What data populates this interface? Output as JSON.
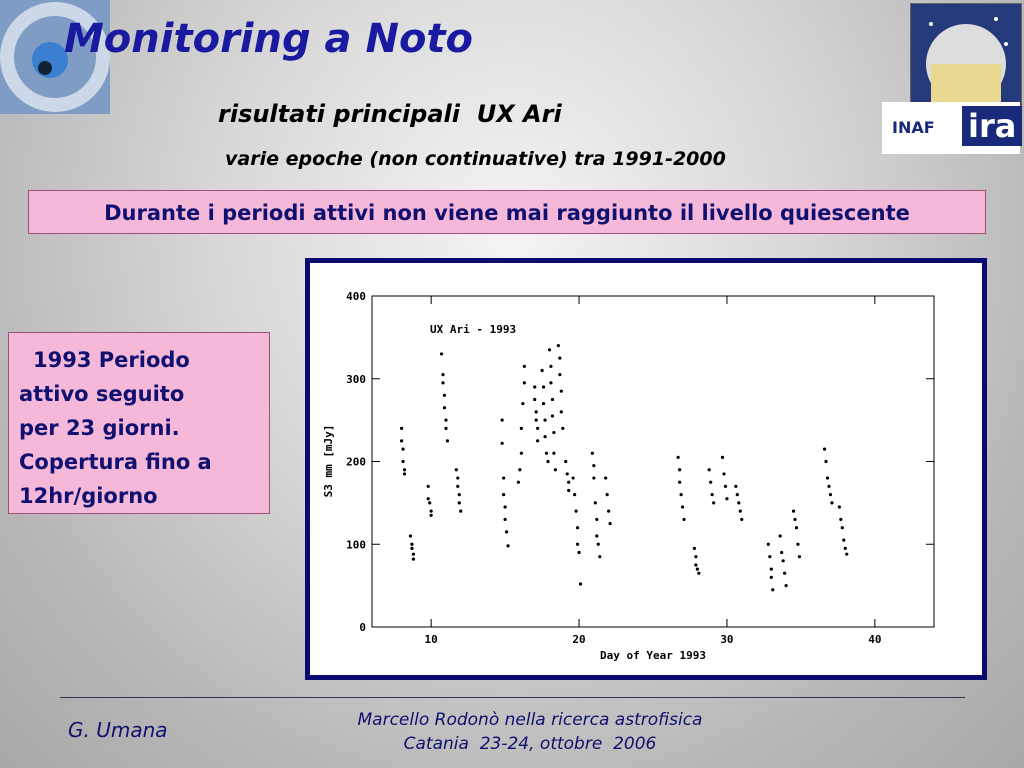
{
  "header": {
    "title": "Monitoring a Noto",
    "subtitle": "risultati principali  UX Ari",
    "epochs": "varie epoche (non continuative) tra 1991-2000"
  },
  "logos": {
    "inaf": "INAF",
    "ira": "ira"
  },
  "banner": "Durante i periodi attivi non viene mai raggiunto il livello quiescente",
  "side_note": [
    "1993 Periodo",
    "attivo seguito",
    "per 23 giorni.",
    "Copertura fino a",
    "12hr/giorno"
  ],
  "chart_data": {
    "type": "scatter",
    "title": "UX Ari - 1993",
    "x_label": "Day of Year 1993",
    "y_label": "S3 mm [mJy]",
    "color": "#000000",
    "xlim": [
      6,
      44
    ],
    "xticks": [
      10,
      20,
      30,
      40
    ],
    "ylim": [
      0,
      400
    ],
    "yticks": [
      0,
      100,
      200,
      300,
      400
    ],
    "x": [
      8.0,
      8.0,
      8.1,
      8.1,
      8.2,
      8.2,
      8.6,
      8.7,
      8.7,
      8.8,
      8.8,
      9.8,
      9.8,
      9.9,
      10.0,
      10.0,
      10.7,
      10.8,
      10.8,
      10.9,
      10.9,
      11.0,
      11.0,
      11.1,
      11.7,
      11.8,
      11.8,
      11.9,
      11.9,
      12.0,
      14.8,
      14.8,
      14.9,
      14.9,
      15.0,
      15.0,
      15.1,
      15.2,
      15.9,
      16.0,
      16.1,
      16.1,
      16.2,
      16.3,
      16.3,
      17.0,
      17.0,
      17.1,
      17.1,
      17.2,
      17.2,
      17.5,
      17.6,
      17.6,
      17.7,
      17.7,
      17.8,
      17.9,
      18.0,
      18.1,
      18.1,
      18.2,
      18.2,
      18.3,
      18.3,
      18.4,
      18.6,
      18.7,
      18.7,
      18.8,
      18.8,
      18.9,
      19.1,
      19.2,
      19.3,
      19.3,
      19.6,
      19.7,
      19.8,
      19.9,
      19.9,
      20.0,
      20.1,
      20.9,
      21.0,
      21.0,
      21.1,
      21.2,
      21.2,
      21.3,
      21.4,
      21.8,
      21.9,
      22.0,
      22.1,
      26.7,
      26.8,
      26.8,
      26.9,
      27.0,
      27.1,
      27.8,
      27.9,
      27.9,
      28.0,
      28.1,
      28.8,
      28.9,
      29.0,
      29.1,
      29.7,
      29.8,
      29.9,
      30.0,
      30.6,
      30.7,
      30.8,
      30.9,
      31.0,
      32.8,
      32.9,
      33.0,
      33.0,
      33.1,
      33.6,
      33.7,
      33.8,
      33.9,
      34.0,
      34.5,
      34.6,
      34.7,
      34.8,
      34.9,
      36.6,
      36.7,
      36.8,
      36.9,
      37.0,
      37.1,
      37.6,
      37.7,
      37.8,
      37.9,
      38.0,
      38.1
    ],
    "values": [
      240,
      225,
      215,
      200,
      190,
      185,
      110,
      100,
      95,
      88,
      82,
      170,
      155,
      150,
      140,
      135,
      330,
      305,
      295,
      280,
      265,
      250,
      240,
      225,
      190,
      180,
      170,
      160,
      150,
      140,
      250,
      222,
      180,
      160,
      145,
      130,
      115,
      98,
      175,
      190,
      210,
      240,
      270,
      295,
      315,
      290,
      275,
      260,
      250,
      240,
      225,
      310,
      290,
      270,
      250,
      230,
      210,
      200,
      335,
      315,
      295,
      275,
      255,
      235,
      210,
      190,
      340,
      325,
      305,
      285,
      260,
      240,
      200,
      185,
      175,
      165,
      180,
      160,
      140,
      120,
      100,
      90,
      52,
      210,
      195,
      180,
      150,
      130,
      110,
      100,
      85,
      180,
      160,
      140,
      125,
      205,
      190,
      175,
      160,
      145,
      130,
      95,
      85,
      75,
      70,
      65,
      190,
      175,
      160,
      150,
      205,
      185,
      170,
      155,
      170,
      160,
      150,
      140,
      130,
      100,
      85,
      70,
      60,
      45,
      110,
      90,
      80,
      65,
      50,
      140,
      130,
      120,
      100,
      85,
      215,
      200,
      180,
      170,
      160,
      150,
      145,
      130,
      120,
      105,
      95,
      88
    ]
  },
  "footer": {
    "author": "G. Umana",
    "event": "Marcello Rodonò nella ricerca astrofisica",
    "place_date": "Catania  23-24, ottobre  2006"
  }
}
